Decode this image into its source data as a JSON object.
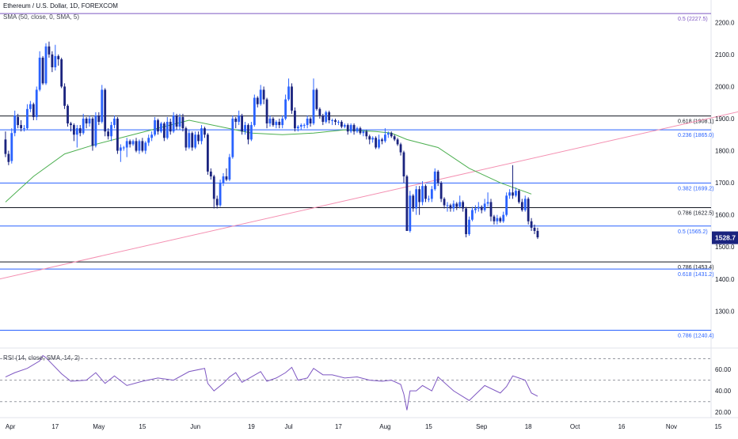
{
  "header": {
    "symbol": "Ethereum / U.S. Dollar, 1D, FOREXCOM",
    "sma_label": "SMA (50, close, 0, SMA, 5)",
    "rsi_label": "RSI (14, close, SMA, 14, 2)"
  },
  "colors": {
    "up": "#2962ff",
    "down": "#1a237e",
    "sma": "#4caf50",
    "trendline": "#f48fb1",
    "fib_blue": "#2962ff",
    "fib_black": "#131722",
    "fib_purple": "#7e57c2",
    "rsi": "#7e57c2",
    "price_badge": "#1a237e"
  },
  "chart_data": {
    "type": "candlestick",
    "price_axis": {
      "ylim": [
        1185,
        2250
      ],
      "ticks": [
        "2200.0",
        "2100.0",
        "2000.0",
        "1900.0",
        "1800.0",
        "1700.0",
        "1600.0",
        "1500.0",
        "1400.0",
        "1300.0"
      ],
      "tick_values": [
        2200,
        2100,
        2000,
        1900,
        1800,
        1700,
        1600,
        1500,
        1400,
        1300
      ]
    },
    "rsi_axis": {
      "ylim": [
        15,
        80
      ],
      "ticks": [
        "60.00",
        "40.00",
        "20.00"
      ],
      "tick_values": [
        60,
        40,
        20
      ],
      "bands": [
        70,
        50,
        30
      ]
    },
    "x_axis": {
      "labels": [
        "Apr",
        "17",
        "May",
        "15",
        "Jun",
        "19",
        "Jul",
        "17",
        "Aug",
        "15",
        "Sep",
        "18",
        "Oct",
        "16",
        "Nov",
        "15"
      ],
      "label_days": [
        1,
        17,
        31,
        45,
        62,
        80,
        92,
        108,
        123,
        137,
        154,
        169,
        184,
        199,
        215,
        230
      ]
    },
    "last_price": "1528.7",
    "fib_levels": [
      {
        "label": "0.5 (2227.5)",
        "value": 2227.5,
        "color": "purple"
      },
      {
        "label": "0.618 (1908.1)",
        "value": 1908.1,
        "color": "black"
      },
      {
        "label": "0.236 (1865.0)",
        "value": 1865.0,
        "color": "blue"
      },
      {
        "label": "0.382 (1699.2)",
        "value": 1699.2,
        "color": "blue"
      },
      {
        "label": "0.786 (1622.5)",
        "value": 1622.5,
        "color": "black"
      },
      {
        "label": "0.5 (1565.2)",
        "value": 1565.2,
        "color": "blue"
      },
      {
        "label": "0.786 (1453.4)",
        "value": 1453.4,
        "color": "black"
      },
      {
        "label": "0.618 (1431.2)",
        "value": 1431.2,
        "color": "blue"
      },
      {
        "label": "0.786 (1240.4)",
        "value": 1240.4,
        "color": "blue"
      }
    ],
    "trendline": {
      "x": [
        -1,
        300
      ],
      "y": [
        1400,
        2061
      ]
    },
    "candles": [
      [
        1,
        1835,
        1790,
        1860,
        1780
      ],
      [
        2,
        1790,
        1765,
        1800,
        1755
      ],
      [
        3,
        1768,
        1855,
        1870,
        1760
      ],
      [
        4,
        1855,
        1910,
        1925,
        1845
      ],
      [
        5,
        1905,
        1880,
        1915,
        1870
      ],
      [
        6,
        1880,
        1870,
        1895,
        1860
      ],
      [
        7,
        1870,
        1870,
        1880,
        1860
      ],
      [
        8,
        1870,
        1930,
        1945,
        1865
      ],
      [
        9,
        1930,
        1945,
        1955,
        1920
      ],
      [
        10,
        1945,
        1905,
        1950,
        1895
      ],
      [
        11,
        1905,
        1990,
        2000,
        1895
      ],
      [
        12,
        1990,
        2090,
        2110,
        1985
      ],
      [
        13,
        2090,
        2010,
        2095,
        2005
      ],
      [
        14,
        2010,
        2125,
        2135,
        2005
      ],
      [
        15,
        2125,
        2100,
        2140,
        2090
      ],
      [
        16,
        2100,
        2060,
        2110,
        2045
      ],
      [
        17,
        2060,
        2095,
        2130,
        2050
      ],
      [
        18,
        2095,
        2085,
        2100,
        2065
      ],
      [
        19,
        2085,
        2000,
        2090,
        1995
      ],
      [
        20,
        2000,
        1940,
        2010,
        1930
      ],
      [
        21,
        1940,
        1885,
        1945,
        1875
      ],
      [
        22,
        1885,
        1880,
        1890,
        1860
      ],
      [
        23,
        1880,
        1850,
        1885,
        1830
      ],
      [
        24,
        1850,
        1870,
        1880,
        1810
      ],
      [
        25,
        1870,
        1855,
        1880,
        1845
      ],
      [
        26,
        1855,
        1900,
        1915,
        1850
      ],
      [
        27,
        1900,
        1885,
        1905,
        1870
      ],
      [
        28,
        1885,
        1900,
        1910,
        1875
      ],
      [
        29,
        1900,
        1815,
        1905,
        1800
      ],
      [
        30,
        1815,
        1910,
        1920,
        1810
      ],
      [
        31,
        1910,
        1890,
        1920,
        1880
      ],
      [
        32,
        1890,
        1990,
        2005,
        1885
      ],
      [
        33,
        1990,
        1860,
        1995,
        1845
      ],
      [
        34,
        1860,
        1845,
        1870,
        1835
      ],
      [
        35,
        1845,
        1880,
        1890,
        1830
      ],
      [
        36,
        1880,
        1900,
        1910,
        1870
      ],
      [
        37,
        1900,
        1800,
        1905,
        1790
      ],
      [
        38,
        1800,
        1810,
        1820,
        1765
      ],
      [
        39,
        1810,
        1810,
        1815,
        1800
      ],
      [
        40,
        1810,
        1830,
        1840,
        1780
      ],
      [
        41,
        1830,
        1820,
        1835,
        1810
      ],
      [
        42,
        1820,
        1830,
        1835,
        1815
      ],
      [
        43,
        1830,
        1800,
        1840,
        1795
      ],
      [
        44,
        1800,
        1830,
        1835,
        1790
      ],
      [
        45,
        1830,
        1800,
        1840,
        1795
      ],
      [
        46,
        1800,
        1825,
        1830,
        1790
      ],
      [
        47,
        1825,
        1840,
        1850,
        1815
      ],
      [
        48,
        1840,
        1850,
        1860,
        1830
      ],
      [
        49,
        1850,
        1895,
        1905,
        1845
      ],
      [
        50,
        1895,
        1860,
        1900,
        1850
      ],
      [
        51,
        1860,
        1885,
        1890,
        1855
      ],
      [
        52,
        1885,
        1840,
        1890,
        1830
      ],
      [
        53,
        1840,
        1890,
        1905,
        1835
      ],
      [
        54,
        1890,
        1860,
        1900,
        1850
      ],
      [
        55,
        1860,
        1910,
        1920,
        1855
      ],
      [
        56,
        1910,
        1875,
        1915,
        1865
      ],
      [
        57,
        1875,
        1905,
        1915,
        1865
      ],
      [
        58,
        1905,
        1870,
        1915,
        1860
      ],
      [
        59,
        1870,
        1810,
        1875,
        1800
      ],
      [
        60,
        1810,
        1855,
        1865,
        1805
      ],
      [
        61,
        1855,
        1810,
        1860,
        1800
      ],
      [
        62,
        1810,
        1850,
        1860,
        1805
      ],
      [
        63,
        1850,
        1830,
        1860,
        1820
      ],
      [
        64,
        1830,
        1870,
        1880,
        1820
      ],
      [
        65,
        1870,
        1850,
        1875,
        1840
      ],
      [
        66,
        1850,
        1735,
        1855,
        1725
      ],
      [
        67,
        1735,
        1720,
        1745,
        1710
      ],
      [
        68,
        1720,
        1650,
        1725,
        1620
      ],
      [
        69,
        1650,
        1630,
        1660,
        1620
      ],
      [
        70,
        1630,
        1700,
        1710,
        1625
      ],
      [
        71,
        1700,
        1720,
        1730,
        1690
      ],
      [
        72,
        1720,
        1710,
        1745,
        1705
      ],
      [
        73,
        1710,
        1780,
        1790,
        1705
      ],
      [
        74,
        1780,
        1900,
        1910,
        1775
      ],
      [
        75,
        1900,
        1890,
        1905,
        1870
      ],
      [
        76,
        1890,
        1910,
        1925,
        1880
      ],
      [
        77,
        1910,
        1860,
        1915,
        1850
      ],
      [
        78,
        1860,
        1880,
        1890,
        1850
      ],
      [
        79,
        1880,
        1835,
        1885,
        1820
      ],
      [
        80,
        1835,
        1880,
        1890,
        1830
      ],
      [
        81,
        1880,
        1965,
        1975,
        1875
      ],
      [
        82,
        1965,
        1945,
        1970,
        1935
      ],
      [
        83,
        1945,
        1990,
        2005,
        1940
      ],
      [
        84,
        1990,
        1960,
        2000,
        1945
      ],
      [
        85,
        1960,
        1885,
        1965,
        1870
      ],
      [
        86,
        1885,
        1900,
        1910,
        1875
      ],
      [
        87,
        1900,
        1880,
        1905,
        1875
      ],
      [
        88,
        1880,
        1890,
        1895,
        1870
      ],
      [
        89,
        1890,
        1880,
        1900,
        1870
      ],
      [
        90,
        1880,
        1900,
        1910,
        1870
      ],
      [
        91,
        1900,
        1960,
        1975,
        1895
      ],
      [
        92,
        1960,
        2000,
        2025,
        1955
      ],
      [
        93,
        2000,
        1925,
        2010,
        1915
      ],
      [
        94,
        1925,
        1870,
        1935,
        1860
      ],
      [
        95,
        1870,
        1875,
        1880,
        1860
      ],
      [
        96,
        1875,
        1880,
        1885,
        1865
      ],
      [
        97,
        1880,
        1880,
        1885,
        1870
      ],
      [
        98,
        1880,
        1900,
        1910,
        1870
      ],
      [
        99,
        1900,
        1885,
        1905,
        1875
      ],
      [
        100,
        1885,
        1990,
        2025,
        1880
      ],
      [
        101,
        1990,
        1930,
        1995,
        1925
      ],
      [
        102,
        1930,
        1910,
        1935,
        1900
      ],
      [
        103,
        1910,
        1890,
        1915,
        1880
      ],
      [
        104,
        1890,
        1920,
        1925,
        1885
      ],
      [
        105,
        1920,
        1895,
        1925,
        1885
      ],
      [
        106,
        1895,
        1895,
        1900,
        1880
      ],
      [
        107,
        1895,
        1890,
        1900,
        1880
      ],
      [
        108,
        1890,
        1890,
        1895,
        1880
      ],
      [
        109,
        1890,
        1875,
        1895,
        1870
      ],
      [
        110,
        1875,
        1880,
        1885,
        1870
      ],
      [
        111,
        1880,
        1860,
        1885,
        1850
      ],
      [
        112,
        1860,
        1880,
        1885,
        1855
      ],
      [
        113,
        1880,
        1860,
        1885,
        1850
      ],
      [
        114,
        1860,
        1870,
        1875,
        1855
      ],
      [
        115,
        1870,
        1855,
        1875,
        1850
      ],
      [
        116,
        1855,
        1860,
        1865,
        1845
      ],
      [
        117,
        1860,
        1845,
        1865,
        1835
      ],
      [
        118,
        1845,
        1835,
        1850,
        1820
      ],
      [
        119,
        1835,
        1840,
        1845,
        1825
      ],
      [
        120,
        1840,
        1810,
        1845,
        1805
      ],
      [
        121,
        1810,
        1835,
        1850,
        1805
      ],
      [
        122,
        1835,
        1830,
        1840,
        1820
      ],
      [
        123,
        1830,
        1850,
        1870,
        1825
      ],
      [
        124,
        1850,
        1855,
        1860,
        1840
      ],
      [
        125,
        1855,
        1845,
        1860,
        1840
      ],
      [
        126,
        1845,
        1835,
        1850,
        1830
      ],
      [
        127,
        1835,
        1820,
        1840,
        1815
      ],
      [
        128,
        1820,
        1795,
        1825,
        1785
      ],
      [
        129,
        1795,
        1720,
        1800,
        1700
      ],
      [
        130,
        1720,
        1550,
        1725,
        1550
      ],
      [
        131,
        1550,
        1660,
        1675,
        1545
      ],
      [
        132,
        1660,
        1620,
        1665,
        1610
      ],
      [
        133,
        1620,
        1680,
        1690,
        1600
      ],
      [
        134,
        1680,
        1640,
        1690,
        1600
      ],
      [
        135,
        1640,
        1690,
        1705,
        1630
      ],
      [
        136,
        1690,
        1650,
        1695,
        1640
      ],
      [
        137,
        1650,
        1650,
        1660,
        1640
      ],
      [
        138,
        1650,
        1680,
        1690,
        1640
      ],
      [
        139,
        1680,
        1735,
        1745,
        1675
      ],
      [
        140,
        1735,
        1700,
        1740,
        1690
      ],
      [
        141,
        1700,
        1650,
        1705,
        1640
      ],
      [
        142,
        1650,
        1630,
        1655,
        1620
      ],
      [
        143,
        1630,
        1630,
        1640,
        1610
      ],
      [
        144,
        1630,
        1620,
        1635,
        1610
      ],
      [
        145,
        1620,
        1635,
        1645,
        1610
      ],
      [
        146,
        1635,
        1625,
        1640,
        1615
      ],
      [
        147,
        1625,
        1640,
        1660,
        1620
      ],
      [
        148,
        1640,
        1620,
        1645,
        1610
      ],
      [
        149,
        1620,
        1540,
        1625,
        1530
      ],
      [
        150,
        1540,
        1585,
        1595,
        1535
      ],
      [
        151,
        1585,
        1615,
        1625,
        1580
      ],
      [
        152,
        1615,
        1620,
        1630,
        1605
      ],
      [
        153,
        1620,
        1625,
        1640,
        1610
      ],
      [
        154,
        1625,
        1615,
        1630,
        1605
      ],
      [
        155,
        1615,
        1635,
        1650,
        1610
      ],
      [
        156,
        1635,
        1640,
        1670,
        1625
      ],
      [
        157,
        1640,
        1595,
        1650,
        1580
      ],
      [
        158,
        1595,
        1580,
        1600,
        1570
      ],
      [
        159,
        1580,
        1590,
        1600,
        1570
      ],
      [
        160,
        1590,
        1580,
        1595,
        1575
      ],
      [
        161,
        1580,
        1600,
        1610,
        1575
      ],
      [
        162,
        1600,
        1660,
        1670,
        1595
      ],
      [
        163,
        1660,
        1670,
        1680,
        1650
      ],
      [
        164,
        1670,
        1660,
        1755,
        1650
      ],
      [
        165,
        1660,
        1675,
        1685,
        1655
      ],
      [
        166,
        1675,
        1640,
        1680,
        1635
      ],
      [
        167,
        1640,
        1615,
        1650,
        1610
      ],
      [
        168,
        1615,
        1650,
        1660,
        1610
      ],
      [
        169,
        1650,
        1580,
        1655,
        1570
      ],
      [
        170,
        1580,
        1560,
        1590,
        1550
      ],
      [
        171,
        1560,
        1550,
        1570,
        1540
      ],
      [
        172,
        1550,
        1530,
        1560,
        1525
      ]
    ],
    "sma": {
      "x": [
        1,
        10,
        20,
        30,
        40,
        50,
        60,
        70,
        80,
        90,
        100,
        110,
        120,
        125,
        130,
        140,
        150,
        160,
        170
      ],
      "y": [
        1640,
        1720,
        1790,
        1820,
        1845,
        1870,
        1895,
        1875,
        1855,
        1850,
        1855,
        1865,
        1860,
        1855,
        1835,
        1810,
        1745,
        1700,
        1665
      ]
    },
    "rsi": {
      "x": [
        1,
        4,
        8,
        12,
        13,
        14,
        16,
        19,
        22,
        27,
        30,
        33,
        36,
        40,
        45,
        50,
        55,
        60,
        65,
        66,
        68,
        71,
        73,
        75,
        77,
        80,
        83,
        85,
        88,
        91,
        93,
        95,
        98,
        100,
        103,
        106,
        110,
        114,
        118,
        122,
        125,
        128,
        129,
        130,
        131,
        133,
        135,
        138,
        140,
        145,
        150,
        155,
        160,
        162,
        164,
        166,
        168,
        170,
        172
      ],
      "y": [
        53,
        57,
        61,
        68,
        73,
        71,
        65,
        56,
        49,
        50,
        57,
        47,
        54,
        45,
        49,
        52,
        50,
        58,
        61,
        47,
        40,
        47,
        53,
        57,
        48,
        53,
        58,
        49,
        52,
        57,
        62,
        50,
        52,
        61,
        55,
        55,
        52,
        53,
        50,
        49,
        50,
        46,
        37,
        22,
        40,
        40,
        45,
        40,
        53,
        40,
        31,
        45,
        38,
        44,
        54,
        52,
        50,
        38,
        35
      ]
    }
  }
}
